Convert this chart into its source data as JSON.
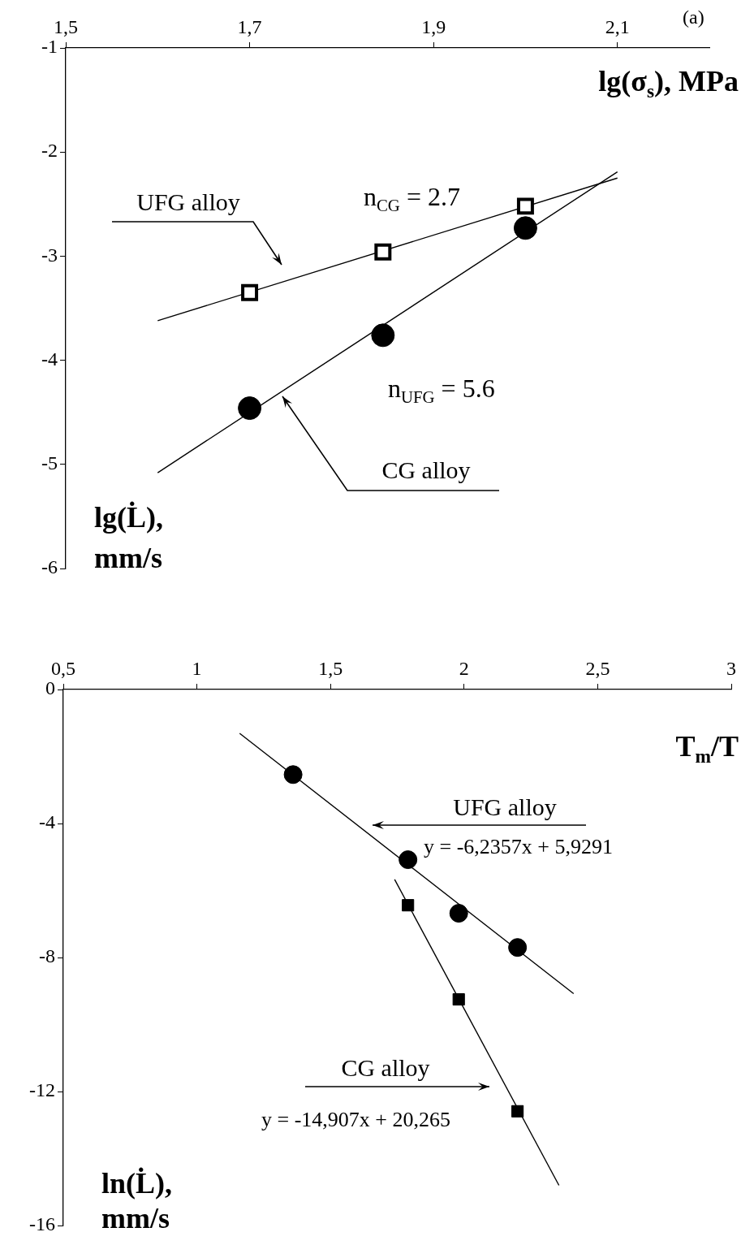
{
  "chart_data": [
    {
      "type": "scatter",
      "xlabel": "lg(σ$_{s}$), MPa",
      "ylabel": "lg(L̇),\nmm/s",
      "xlim": [
        1.5,
        2.2
      ],
      "xticks": [
        {
          "value": 1.5,
          "label": "1,5"
        },
        {
          "value": 1.7,
          "label": "1,7"
        },
        {
          "value": 1.9,
          "label": "1,9"
        },
        {
          "value": 2.1,
          "label": "2,1"
        }
      ],
      "ylim": [
        -6,
        -1
      ],
      "yticks": [
        -6,
        -5,
        -4,
        -3,
        -2,
        -1
      ],
      "grid": false,
      "legend": false,
      "series": [
        {
          "type": "scatter",
          "marker": "square",
          "color": "#000000",
          "x": [
            1.7,
            1.845,
            2.0
          ],
          "values": [
            -3.35,
            -2.96,
            -2.52
          ]
        },
        {
          "type": "scatter",
          "marker": "circle",
          "color": "#000000",
          "x": [
            1.7,
            1.845,
            2.0
          ],
          "values": [
            -4.46,
            -3.76,
            -2.73
          ]
        },
        {
          "type": "line",
          "marker": "none",
          "color": "#000000",
          "x": [
            1.6,
            2.1
          ],
          "values": [
            -3.62,
            -2.25
          ]
        },
        {
          "type": "line",
          "marker": "none",
          "color": "#000000",
          "x": [
            1.6,
            2.1
          ],
          "values": [
            -5.08,
            -2.19
          ]
        }
      ],
      "annotations": [
        "UFG alloy",
        "CG alloy",
        "n$_{CG}$ = 2.7",
        "n$_{UFG}$ = 5.6",
        "(a)"
      ]
    },
    {
      "type": "scatter",
      "xlabel": "T$_{m}$/T",
      "ylabel": "ln(L̇),\nmm/s",
      "xlim": [
        0.5,
        3
      ],
      "xticks": [
        {
          "value": 0.5,
          "label": "0,5"
        },
        1,
        {
          "value": 1.5,
          "label": "1,5"
        },
        2,
        {
          "value": 2.5,
          "label": "2,5"
        },
        3
      ],
      "ylim": [
        -16,
        0
      ],
      "yticks": [
        -16,
        -12,
        -8,
        -4,
        0
      ],
      "grid": false,
      "legend": false,
      "series": [
        {
          "type": "scatter",
          "marker": "circle",
          "color": "#000000",
          "x": [
            1.36,
            1.79,
            1.98,
            2.2
          ],
          "values": [
            -2.54,
            -5.08,
            -6.68,
            -7.7
          ]
        },
        {
          "type": "scatter",
          "marker": "square",
          "color": "#000000",
          "x": [
            1.79,
            1.98,
            2.2
          ],
          "values": [
            -6.44,
            -9.25,
            -12.59
          ]
        },
        {
          "type": "line",
          "marker": "none",
          "color": "#000000",
          "x": [
            1.16,
            2.41
          ],
          "values": [
            -1.31,
            -9.08
          ]
        },
        {
          "type": "line",
          "marker": "none",
          "color": "#000000",
          "x": [
            1.74,
            2.355
          ],
          "values": [
            -5.67,
            -14.8
          ]
        }
      ],
      "annotations": [
        "UFG alloy",
        "y = -6,2357x + 5,9291",
        "CG alloy",
        "y = -14,907x + 20,265"
      ]
    }
  ]
}
